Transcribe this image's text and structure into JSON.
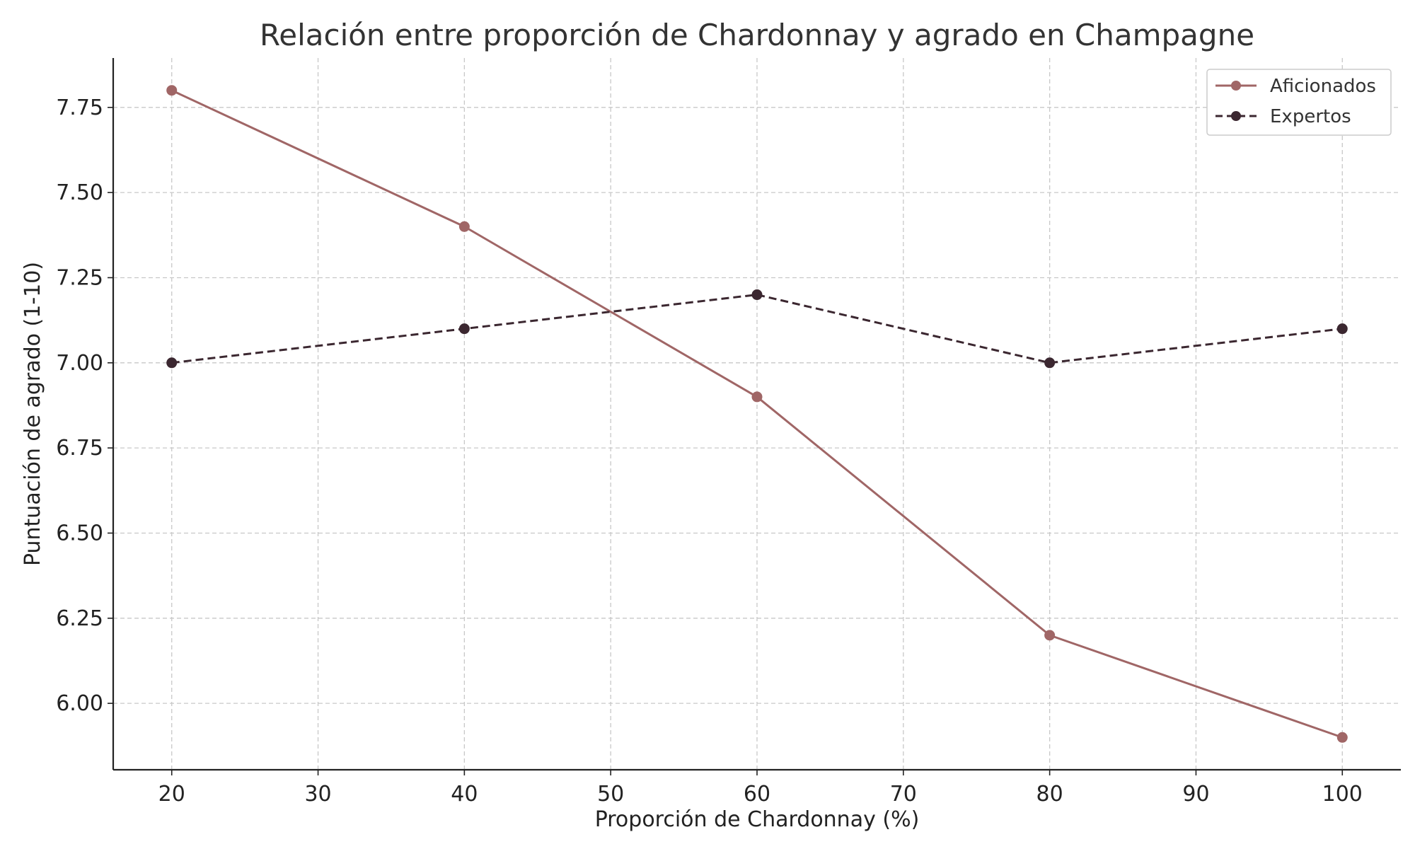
{
  "chart_data": {
    "type": "line",
    "title": "Relación entre proporción de Chardonnay y agrado en Champagne",
    "xlabel": "Proporción de Chardonnay (%)",
    "ylabel": "Puntuación de agrado (1-10)",
    "x": [
      20,
      40,
      60,
      80,
      100
    ],
    "xlim": [
      16,
      104
    ],
    "ylim": [
      5.805,
      7.895
    ],
    "xticks": [
      20,
      30,
      40,
      50,
      60,
      70,
      80,
      90,
      100
    ],
    "xtick_labels": [
      "20",
      "30",
      "40",
      "50",
      "60",
      "70",
      "80",
      "90",
      "100"
    ],
    "yticks": [
      6.0,
      6.25,
      6.5,
      6.75,
      7.0,
      7.25,
      7.5,
      7.75
    ],
    "ytick_labels": [
      "6.00",
      "6.25",
      "6.50",
      "6.75",
      "7.00",
      "7.25",
      "7.50",
      "7.75"
    ],
    "grid": true,
    "legend_position": "top-right",
    "series": [
      {
        "name": "Aficionados",
        "values": [
          7.8,
          7.4,
          6.9,
          6.2,
          5.9
        ],
        "color": "#a06666",
        "line_style": "solid",
        "marker": "circle"
      },
      {
        "name": "Expertos",
        "values": [
          7.0,
          7.1,
          7.2,
          7.0,
          7.1
        ],
        "color": "#3b2730",
        "line_style": "dashed",
        "marker": "circle"
      }
    ]
  }
}
